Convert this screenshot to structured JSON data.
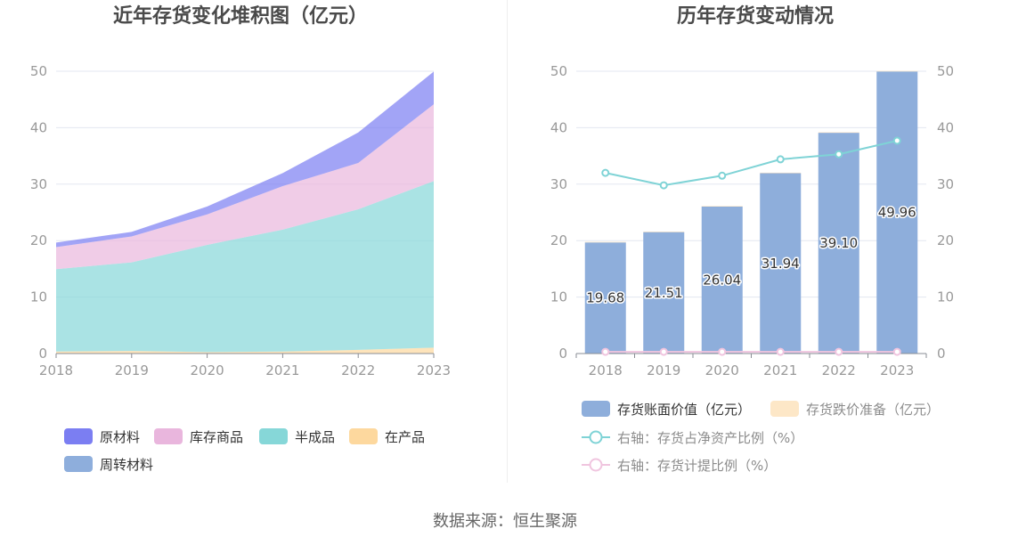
{
  "footer": {
    "source": "数据来源：恒生聚源"
  },
  "chart_data": [
    {
      "type": "area",
      "stacked": true,
      "title": "近年存货变化堆积图（亿元）",
      "categories": [
        "2018",
        "2019",
        "2020",
        "2021",
        "2022",
        "2023"
      ],
      "ylim": [
        0,
        50
      ],
      "yticks": [
        0,
        10,
        20,
        30,
        40,
        50
      ],
      "grid": true,
      "legend_position": "bottom",
      "series": [
        {
          "name": "原材料",
          "color": "#7b7ef2",
          "values": [
            0.8,
            0.8,
            1.4,
            2.3,
            5.4,
            5.8
          ]
        },
        {
          "name": "库存商品",
          "color": "#e9b6dd",
          "values": [
            3.9,
            4.6,
            5.4,
            7.7,
            8.2,
            13.6
          ]
        },
        {
          "name": "半成品",
          "color": "#86d7d8",
          "values": [
            14.6,
            15.7,
            19.0,
            21.6,
            24.9,
            29.5
          ]
        },
        {
          "name": "在产品",
          "color": "#fdd89e",
          "values": [
            0.3,
            0.4,
            0.2,
            0.3,
            0.6,
            1.0
          ]
        },
        {
          "name": "周转材料",
          "color": "#8eaedc",
          "values": [
            0.05,
            0.05,
            0.05,
            0.05,
            0.05,
            0.05
          ]
        }
      ]
    },
    {
      "type": "bar",
      "title": "历年存货变动情况",
      "categories": [
        "2018",
        "2019",
        "2020",
        "2021",
        "2022",
        "2023"
      ],
      "ylim": [
        0,
        50
      ],
      "yticks": [
        0,
        10,
        20,
        30,
        40,
        50
      ],
      "y2lim": [
        0,
        50
      ],
      "y2ticks": [
        0,
        10,
        20,
        30,
        40,
        50
      ],
      "grid": true,
      "legend_position": "bottom",
      "series": [
        {
          "name": "存货账面价值（亿元）",
          "type": "bar",
          "axis": "left",
          "color": "#8eaedb",
          "values": [
            19.68,
            21.51,
            26.04,
            31.94,
            39.1,
            49.96
          ],
          "data_labels": [
            "19.68",
            "21.51",
            "26.04",
            "31.94",
            "39.10",
            "49.96"
          ]
        },
        {
          "name": "存货跌价准备（亿元）",
          "type": "bar",
          "axis": "left",
          "color": "#fde7c7",
          "values": [
            0.1,
            0.1,
            0.1,
            0.1,
            0.1,
            0.1
          ]
        },
        {
          "name": "右轴：存货占净资产比例（%）",
          "type": "line",
          "axis": "right",
          "color": "#7fd3d6",
          "values": [
            32.0,
            29.8,
            31.5,
            34.4,
            35.3,
            37.7
          ]
        },
        {
          "name": "右轴：存货计提比例（%）",
          "type": "line",
          "axis": "right",
          "color": "#f0c5df",
          "values": [
            0.3,
            0.3,
            0.3,
            0.3,
            0.3,
            0.3
          ]
        }
      ]
    }
  ]
}
